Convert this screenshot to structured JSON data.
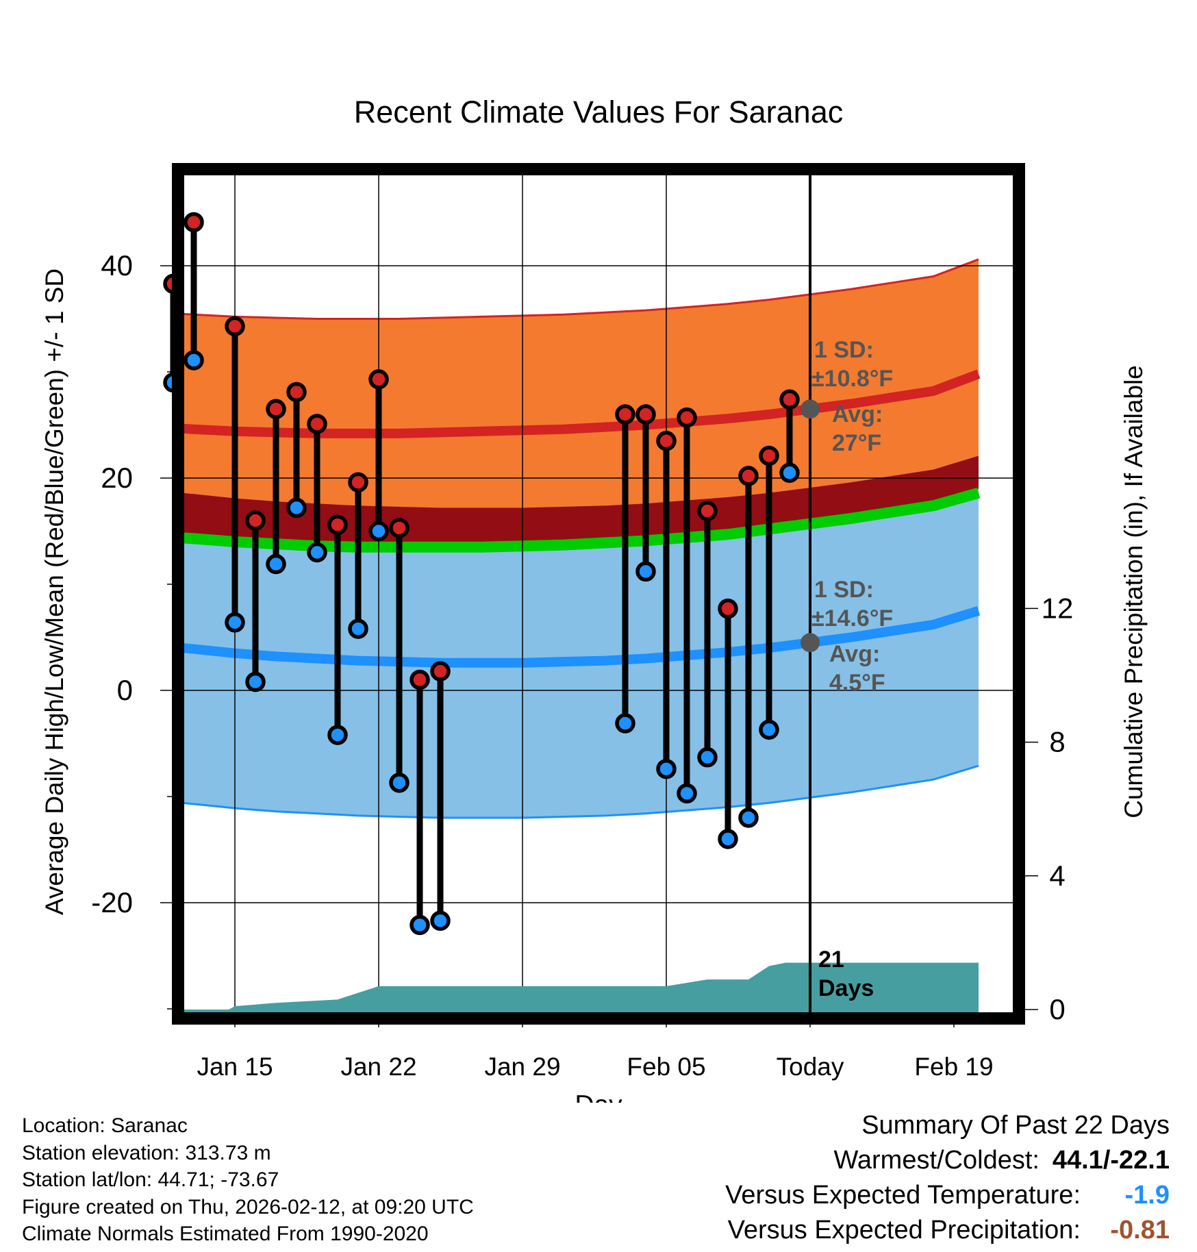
{
  "chart_data": {
    "type": "line",
    "title": "Recent Climate Values For Saranac",
    "xlabel": "Day",
    "ylabel": "Average Daily High/Low/Mean (Red/Blue/Green) +/- 1 SD",
    "ylabel_right": "Cumulative Precipitation (in), If Available",
    "ylim": [
      -30,
      50
    ],
    "y2lim": [
      0,
      30
    ],
    "xlim": [
      11.2,
      44.7
    ],
    "x_ticks": [
      {
        "day": 15,
        "label": "Jan 15"
      },
      {
        "day": 22,
        "label": "Jan 22"
      },
      {
        "day": 29,
        "label": "Jan 29"
      },
      {
        "day": 36,
        "label": "Feb 05"
      },
      {
        "day": 43,
        "label": "Today"
      },
      {
        "day": 50,
        "label": "Feb 19"
      }
    ],
    "y_ticks": [
      -20,
      0,
      20,
      40
    ],
    "y2_ticks": [
      0,
      4,
      8,
      12
    ],
    "today_day": 43,
    "normals": {
      "days": [
        11.2,
        13,
        15,
        17,
        19,
        21,
        23,
        25,
        27,
        29,
        31,
        33,
        35,
        37,
        39,
        41,
        43,
        45,
        47,
        49,
        51.2
      ],
      "avg_high": [
        24.8,
        24.6,
        24.4,
        24.3,
        24.2,
        24.2,
        24.2,
        24.3,
        24.4,
        24.5,
        24.6,
        24.8,
        25.0,
        25.3,
        25.6,
        26.0,
        26.5,
        27.0,
        27.6,
        28.2,
        29.8
      ],
      "avg_low": [
        4.2,
        3.9,
        3.5,
        3.2,
        3.0,
        2.8,
        2.7,
        2.6,
        2.6,
        2.6,
        2.7,
        2.8,
        3.0,
        3.3,
        3.6,
        4.0,
        4.5,
        5.0,
        5.6,
        6.2,
        7.5
      ],
      "avg_mean": [
        14.5,
        14.3,
        14.0,
        13.8,
        13.6,
        13.5,
        13.5,
        13.5,
        13.5,
        13.6,
        13.7,
        13.9,
        14.1,
        14.4,
        14.7,
        15.2,
        15.7,
        16.2,
        16.8,
        17.4,
        18.6
      ],
      "high_sd": 10.8,
      "low_sd": 14.6
    },
    "observed": [
      {
        "day": 12,
        "high": 38.3,
        "low": 29.0
      },
      {
        "day": 13,
        "high": 44.1,
        "low": 31.1
      },
      {
        "day": 15,
        "high": 34.3,
        "low": 6.4
      },
      {
        "day": 16,
        "high": 16.0,
        "low": 0.8
      },
      {
        "day": 17,
        "high": 26.5,
        "low": 11.9
      },
      {
        "day": 18,
        "high": 28.1,
        "low": 17.2
      },
      {
        "day": 19,
        "high": 25.1,
        "low": 13.0
      },
      {
        "day": 20,
        "high": 15.6,
        "low": -4.2
      },
      {
        "day": 21,
        "high": 19.6,
        "low": 5.8
      },
      {
        "day": 22,
        "high": 29.3,
        "low": 15.0
      },
      {
        "day": 23,
        "high": 15.3,
        "low": -8.7
      },
      {
        "day": 24,
        "high": 1.0,
        "low": -22.1
      },
      {
        "day": 25,
        "high": 1.8,
        "low": -21.7
      },
      {
        "day": 34,
        "high": 26.0,
        "low": -3.1
      },
      {
        "day": 35,
        "high": 26.0,
        "low": 11.2
      },
      {
        "day": 36,
        "high": 23.5,
        "low": -7.4
      },
      {
        "day": 37,
        "high": 25.7,
        "low": -9.7
      },
      {
        "day": 38,
        "high": 16.9,
        "low": -6.3
      },
      {
        "day": 39,
        "high": 7.7,
        "low": -14.0
      },
      {
        "day": 40,
        "high": 20.2,
        "low": -12.0
      },
      {
        "day": 41,
        "high": 22.1,
        "low": -3.7
      },
      {
        "day": 42,
        "high": 27.4,
        "low": 20.5
      }
    ],
    "precip": {
      "days": [
        11.2,
        14.7,
        15.0,
        17.0,
        20.0,
        21.0,
        22.0,
        36.0,
        37.0,
        38.0,
        40.0,
        41.0,
        41.8,
        51.2
      ],
      "values": [
        0,
        0,
        0.1,
        0.2,
        0.3,
        0.5,
        0.7,
        0.7,
        0.8,
        0.9,
        0.9,
        1.3,
        1.4,
        1.4
      ]
    },
    "annotations": {
      "high_sd_label": "1 SD:",
      "high_sd_value": "±10.8°F",
      "high_avg_label": "Avg:",
      "high_avg_value": "27°F",
      "low_sd_label": "1 SD:",
      "low_sd_value": "±14.6°F",
      "low_avg_label": "Avg:",
      "low_avg_value": "4.5°F",
      "days_count": "21",
      "days_label": "Days"
    },
    "colors": {
      "high_band": "#f47a30",
      "high_line": "#d32323",
      "overlap_band": "#930d14",
      "low_band": "#86c0e6",
      "low_line": "#1e90ff",
      "mean_line": "#00cc00",
      "precip_fill": "#469ea0",
      "high_dot": "#d32323",
      "low_dot": "#1e90ff",
      "annotation_text": "#555555"
    }
  },
  "footer": {
    "location": "Location: Saranac",
    "elevation": "Station elevation: 313.73 m",
    "latlon": "Station lat/lon: 44.71; -73.67",
    "created": "Figure created on Thu, 2026-02-12, at 09:20 UTC",
    "normals": "Climate Normals Estimated From 1990-2020"
  },
  "summary": {
    "title": "Summary Of Past 22 Days",
    "warm_cold_label": "Warmest/Coldest:",
    "warm_cold_value": "44.1/-22.1",
    "temp_label": "Versus Expected Temperature:",
    "temp_value": "-1.9",
    "precip_label": "Versus Expected Precipitation:",
    "precip_value": "-0.81"
  }
}
